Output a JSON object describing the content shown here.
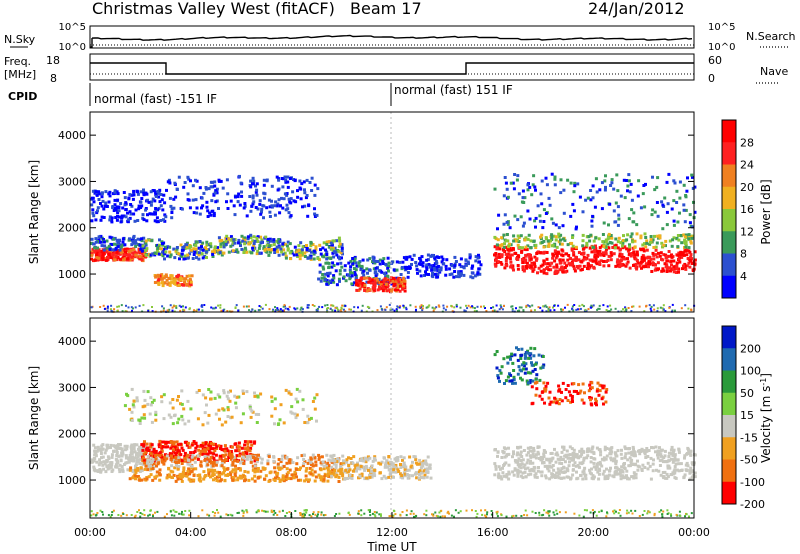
{
  "header": {
    "title": "Christmas Valley West (fitACF)",
    "beam": "Beam 17",
    "date": "24/Jan/2012"
  },
  "top_panels": {
    "nsky_label": "N.Sky",
    "nsearch_label": "N.Search",
    "nsky_ticks": [
      "10^5",
      "10^0"
    ],
    "nsearch_ticks": [
      "10^5",
      "10^0"
    ],
    "freq_label_1": "Freq.",
    "freq_label_2": "[MHz]",
    "freq_ticks": [
      "18",
      "8"
    ],
    "nave_label": "Nave",
    "nave_ticks": [
      "60",
      "0"
    ],
    "cpid_label": "CPID",
    "cpid_segments": [
      "normal (fast) -151 IF",
      "normal (fast) 151 IF"
    ]
  },
  "chart_data": [
    {
      "type": "heatmap",
      "title": "",
      "ylabel": "Slant Range [km]",
      "ylim": [
        180,
        4500
      ],
      "yticks": [
        "1000",
        "2000",
        "3000",
        "4000"
      ],
      "colorbar_label": "Power [dB]",
      "colorbar_ticks": [
        "4",
        "8",
        "12",
        "16",
        "20",
        "24",
        "28"
      ],
      "colors": [
        "#0000ff",
        "#2c50d0",
        "#3a9a5a",
        "#8ac83a",
        "#f0b020",
        "#f08020",
        "#ff2020",
        "#ff0000"
      ]
    },
    {
      "type": "heatmap",
      "title": "",
      "xlabel": "Time UT",
      "ylabel": "Slant Range [km]",
      "ylim": [
        180,
        4500
      ],
      "xticks": [
        "00:00",
        "04:00",
        "08:00",
        "12:00",
        "16:00",
        "20:00",
        "00:00"
      ],
      "yticks": [
        "1000",
        "2000",
        "3000",
        "4000"
      ],
      "colorbar_label": "Velocity [m s",
      "colorbar_label_sup": "-1",
      "colorbar_label_end": "]",
      "colorbar_ticks": [
        "200",
        "100",
        "50",
        "15",
        "-15",
        "-50",
        "-100",
        "-200"
      ],
      "colors": [
        "#0018c8",
        "#1f6ab0",
        "#2a9a3a",
        "#7ad040",
        "#c8c8c0",
        "#f0a020",
        "#f07010",
        "#ff0000"
      ]
    }
  ]
}
